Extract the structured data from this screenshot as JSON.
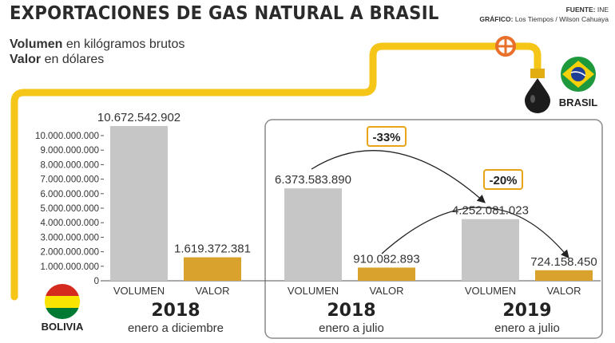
{
  "header": {
    "title": "EXPORTACIONES DE GAS NATURAL A BRASIL",
    "source_label": "FUENTE:",
    "source_value": "INE",
    "graphic_label": "GRÁFICO:",
    "graphic_value": "Los Tiempos / Wilson Cahuaya"
  },
  "legend": {
    "volume_bold": "Volumen",
    "volume_rest": " en kilógramos brutos",
    "value_bold": "Valor",
    "value_rest": " en dólares"
  },
  "places": {
    "origin": "BOLIVIA",
    "destination": "BRASIL"
  },
  "colors": {
    "volume": "#c6c6c6",
    "value": "#d9a22c",
    "pipe": "#f5c518",
    "frame": "#8a8a8a",
    "change_border": "#e8a317"
  },
  "chart_data": {
    "type": "bar",
    "y_ticks": [
      "10.000.000.000",
      "9.000.000.000",
      "8.000.000.000",
      "7.000.000.000",
      "6.000.000.000",
      "5.000.000.000",
      "4.000.000.000",
      "3.000.000.000",
      "2.000.000.000",
      "1.000.000.000",
      "0"
    ],
    "ylim": [
      0,
      10672542902
    ],
    "groups": [
      {
        "year": "2018",
        "period": "enero a diciembre",
        "bars": [
          {
            "category": "VOLUMEN",
            "value": 10672542902,
            "label": "10.672.542.902"
          },
          {
            "category": "VALOR",
            "value": 1619372381,
            "label": "1.619.372.381"
          }
        ]
      },
      {
        "year": "2018",
        "period": "enero a julio",
        "bars": [
          {
            "category": "VOLUMEN",
            "value": 6373583890,
            "label": "6.373.583.890"
          },
          {
            "category": "VALOR",
            "value": 910082893,
            "label": "910.082.893"
          }
        ]
      },
      {
        "year": "2019",
        "period": "enero a julio",
        "bars": [
          {
            "category": "VOLUMEN",
            "value": 4252081023,
            "label": "4.252.081.023"
          },
          {
            "category": "VALOR",
            "value": 724158450,
            "label": "724.158.450"
          }
        ]
      }
    ],
    "changes": [
      {
        "label": "-33%",
        "measure": "VOLUMEN"
      },
      {
        "label": "-20%",
        "measure": "VALOR"
      }
    ]
  }
}
